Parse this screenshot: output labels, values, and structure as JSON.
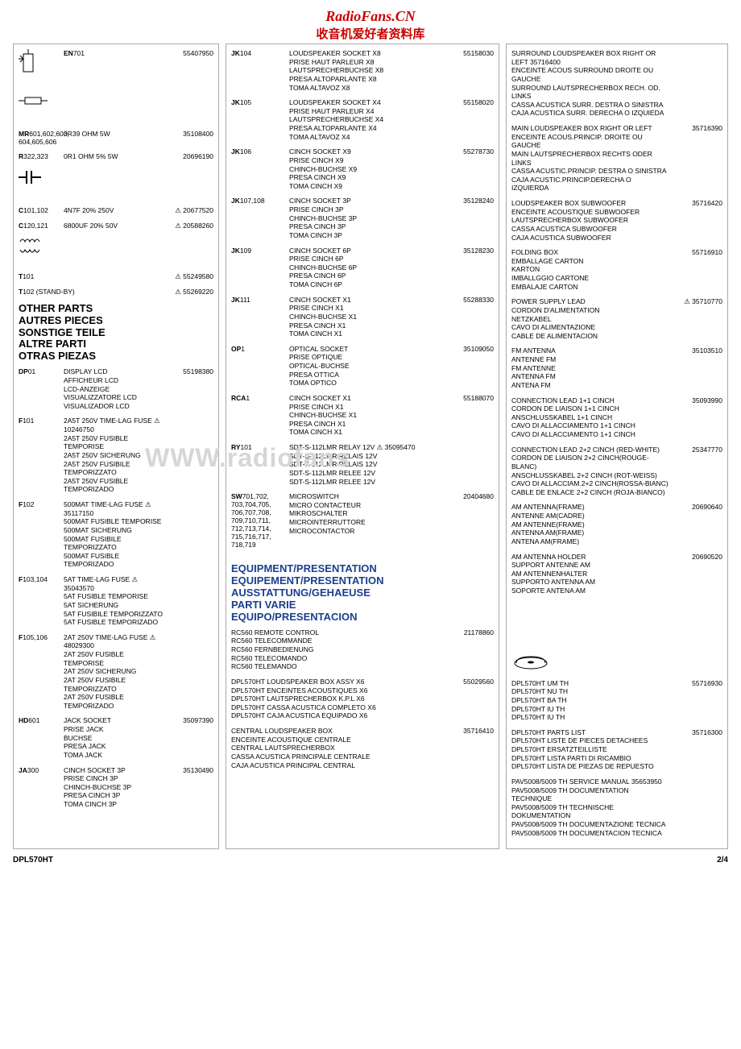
{
  "header": {
    "title_red": "RadioFans.CN",
    "title_cn": "收音机爱好者资料库"
  },
  "watermark": "WWW.radiofans",
  "footer": {
    "left": "DPL570HT",
    "right": "2/4"
  },
  "col1_symbols": [
    {
      "ref": "EN701",
      "mid": "",
      "code": "55407950"
    },
    {
      "ref": "",
      "mid": "",
      "code": ""
    },
    {
      "ref_html": "<b>MR</b>601,602,603, 604,605,606",
      "mid": "0R39 OHM 5W",
      "code": "35108400"
    },
    {
      "ref_html": "<b>R</b>322,323",
      "mid": "0R1 OHM 5% 5W",
      "code": "20696190"
    },
    {
      "ref": "",
      "mid": "",
      "code": ""
    },
    {
      "ref_html": "<b>C</b>101,102",
      "mid": "4N7F 20% 250V",
      "code": "⚠ 20677520"
    },
    {
      "ref_html": "<b>C</b>120,121",
      "mid": "6800UF 20% 50V",
      "code": "⚠ 20588260"
    },
    {
      "ref": "",
      "mid": "",
      "code": ""
    },
    {
      "ref_html": "<b>T</b>101",
      "mid": "",
      "code": "⚠ 55249580"
    },
    {
      "ref_html": "<b>T</b>102 (STAND-BY)",
      "mid": "",
      "code": "⚠ 55269220"
    }
  ],
  "col1_section_title": "OTHER PARTS\nAUTRES PIECES\nSONSTIGE TEILE\nALTRE PARTI\nOTRAS PIEZAS",
  "col1_parts": [
    {
      "ref": "DP01",
      "desc": "DISPLAY LCD\nAFFICHEUR LCD\nLCD-ANZEIGE\nVISUALIZZATORE LCD\nVISUALIZADOR LCD",
      "code": "55198380"
    },
    {
      "ref": "F101",
      "desc": "2A5T 250V TIME-LAG FUSE ⚠ 10246750\n2A5T 250V FUSIBLE TEMPORISE\n2A5T 250V SICHERUNG\n2A5T 250V FUSIBILE TEMPORIZZATO\n2A5T 250V FUSIBLE TEMPORIZADO",
      "code": ""
    },
    {
      "ref": "F102",
      "desc": "500MAT TIME-LAG FUSE        ⚠ 35117150\n500MAT FUSIBLE TEMPORISE\n500MAT SICHERUNG\n500MAT FUSIBILE TEMPORIZZATO\n500MAT FUSIBLE TEMPORIZADO",
      "code": ""
    },
    {
      "ref": "F103,104",
      "desc": "5AT TIME-LAG FUSE             ⚠ 35043570\n5AT FUSIBLE TEMPORISE\n5AT SICHERUNG\n5AT FUSIBILE TEMPORIZZATO\n5AT FUSIBLE TEMPORIZADO",
      "code": ""
    },
    {
      "ref": "F105,106",
      "desc": "2AT 250V TIME-LAG FUSE  ⚠ 48029300\n2AT 250V FUSIBLE TEMPORISE\n2AT 250V SICHERUNG\n2AT 250V FUSIBILE TEMPORIZZATO\n2AT 250V FUSIBLE TEMPORIZADO",
      "code": ""
    },
    {
      "ref": "HD601",
      "desc": "JACK SOCKET\nPRISE JACK\nBUCHSE\nPRESA JACK\nTOMA JACK",
      "code": "35097390"
    },
    {
      "ref": "JA300",
      "desc": "CINCH SOCKET 3P\nPRISE CINCH 3P\nCHINCH-BUCHSE 3P\nPRESA CINCH 3P\nTOMA CINCH 3P",
      "code": "35130490"
    }
  ],
  "col2_parts": [
    {
      "ref": "JK104",
      "desc": "LOUDSPEAKER SOCKET X8\nPRISE HAUT PARLEUR X8\nLAUTSPRECHERBUCHSE X8\nPRESA ALTOPARLANTE X8\nTOMA ALTAVOZ X8",
      "code": "55158030"
    },
    {
      "ref": "JK105",
      "desc": "LOUDSPEAKER SOCKET X4\nPRISE HAUT PARLEUR X4\nLAUTSPRECHERBUCHSE X4\nPRESA ALTOPARLANTE X4\nTOMA ALTAVOZ X4",
      "code": "55158020"
    },
    {
      "ref": "JK106",
      "desc": "CINCH SOCKET X9\nPRISE CINCH X9\nCHINCH-BUCHSE X9\nPRESA CINCH X9\nTOMA CINCH X9",
      "code": "55278730"
    },
    {
      "ref": "JK107,108",
      "desc": "CINCH SOCKET 3P\nPRISE CINCH 3P\nCHINCH-BUCHSE 3P\nPRESA CINCH 3P\nTOMA CINCH 3P",
      "code": "35128240"
    },
    {
      "ref": "JK109",
      "desc": "CINCH SOCKET 6P\nPRISE CINCH 6P\nCHINCH-BUCHSE 6P\nPRESA CINCH 6P\nTOMA CINCH 6P",
      "code": "35128230"
    },
    {
      "ref": "JK111",
      "desc": "CINCH SOCKET X1\nPRISE CINCH X1\nCHINCH-BUCHSE X1\nPRESA CINCH X1\nTOMA CINCH X1",
      "code": "55288330"
    },
    {
      "ref": "OP1",
      "desc": "OPTICAL SOCKET\nPRISE OPTIQUE\nOPTICAL-BUCHSE\nPRESA OTTICA\nTOMA OPTICO",
      "code": "35109050"
    },
    {
      "ref": "RCA1",
      "desc": "CINCH SOCKET X1\nPRISE CINCH X1\nCHINCH-BUCHSE X1\nPRESA CINCH X1\nTOMA CINCH X1",
      "code": "55188070"
    },
    {
      "ref": "RY101",
      "desc": "SDT-S-112LMR RELAY 12V     ⚠ 35095470\nSDT-S-112LMR RELAIS 12V\nSDT-S-112LMR RELAIS 12V\nSDT-S-112LMR RELEE 12V\nSDT-S-112LMR RELEE 12V",
      "code": ""
    },
    {
      "ref": "SW701,702, 703,704,705, 706,707,708, 709,710,711, 712,713,714, 715,716,717, 718,719",
      "desc": "MICROSWITCH\nMICRO CONTACTEUR\nMIKROSCHALTER\nMICROINTERRUTTORE\nMICROCONTACTOR",
      "code": "20404680"
    }
  ],
  "col2_section_title": "EQUIPMENT/PRESENTATION\nEQUIPEMENT/PRESENTATION\nAUSSTATTUNG/GEHAEUSE\nPARTI VARIE\nEQUIPO/PRESENTACION",
  "col2_equipment": [
    {
      "desc": "RC560 REMOTE CONTROL\nRC560 TELECOMMANDE\nRC560 FERNBEDIENUNG\nRC560 TELECOMANDO\nRC560 TELEMANDO",
      "code": "21178860"
    },
    {
      "desc": "DPL570HT LOUDSPEAKER BOX ASSY X6\nDPL570HT ENCEINTES ACOUSTIQUES X6\nDPL570HT LAUTSPRECHERBOX K.P.L X6\nDPL570HT CASSA ACUSTICA COMPLETO X6\nDPL570HT CAJA ACUSTICA EQUIPADO X6",
      "code": "55029560"
    },
    {
      "desc": "CENTRAL LOUDSPEAKER BOX\nENCEINTE ACOUSTIQUE CENTRALE\nCENTRAL LAUTSPRECHERBOX\nCASSA ACUSTICA PRINCIPALE CENTRALE\nCAJA ACUSTICA PRINCIPAL CENTRAL",
      "code": "35716410"
    }
  ],
  "col3_parts": [
    {
      "desc": "SURROUND LOUDSPEAKER BOX RIGHT OR LEFT 35716400\nENCEINTE ACOUS SURROUND DROITE OU GAUCHE\nSURROUND LAUTSPRECHERBOX RECH. OD. LINKS\nCASSA ACUSTICA SURR. DESTRA O SINISTRA\nCAJA ACUSTICA SURR. DERECHA O IZQUIEDA",
      "code": ""
    },
    {
      "desc": "MAIN LOUDSPEAKER BOX RIGHT OR LEFT\nENCEINTE ACOUS.PRINCIP. DROITE OU GAUCHE\nMAIN LAUTSPRECHERBOX RECHTS ODER LINKS\nCASSA ACUSTIC.PRINCIP. DESTRA O SINISTRA\nCAJA ACUSTIC.PRINCIP.DERECHA O IZQUIERDA",
      "code": "35716390"
    },
    {
      "desc": "LOUDSPEAKER BOX SUBWOOFER\nENCEINTE ACOUSTIQUE SUBWOOFER\nLAUTSPRECHERBOX SUBWOOFER\nCASSA ACUSTICA SUBWOOFER\nCAJA ACUSTICA SUBWOOFER",
      "code": "35716420"
    },
    {
      "desc": "FOLDING BOX\nEMBALLAGE CARTON\nKARTON\nIMBALLGGIO CARTONE\nEMBALAJE CARTON",
      "code": "55716910"
    },
    {
      "desc": "POWER SUPPLY LEAD\nCORDON D'ALIMENTATION\nNETZKABEL\nCAVO DI ALIMENTAZIONE\nCABLE DE ALIMENTACION",
      "code": "⚠ 35710770"
    },
    {
      "desc": "FM ANTENNA\nANTENNE FM\nFM ANTENNE\nANTENNA FM\nANTENA FM",
      "code": "35103510"
    },
    {
      "desc": "CONNECTION LEAD 1+1 CINCH\nCORDON DE LIAISON 1+1 CINCH\nANSCHLUSSKABEL 1+1 CINCH\nCAVO DI ALLACCIAMENTO 1+1 CINCH\nCAVO DI ALLACCIAMENTO 1+1 CINCH",
      "code": "35093990"
    },
    {
      "desc": "CONNECTION LEAD 2+2 CINCH (RED-WHITE)\nCORDON DE LIAISON 2+2 CINCH(ROUGE-BLANC)\nANSCHLUSSKABEL 2+2 CINCH (ROT-WEISS)\nCAVO DI ALLACCIAM.2+2 CINCH(ROSSA-BIANC)\nCABLE DE ENLACE 2+2 CINCH (ROJA-BIANCO)",
      "code": "25347770"
    },
    {
      "desc": "AM ANTENNA(FRAME)\nANTENNE AM(CADRE)\nAM ANTENNE(FRAME)\nANTENNA AM(FRAME)\nANTENA AM(FRAME)",
      "code": "20690640"
    },
    {
      "desc": "AM ANTENNA HOLDER\nSUPPORT ANTENNE AM\nAM ANTENNENHALTER\nSUPPORTO ANTENNA AM\nSOPORTE ANTENA AM",
      "code": "20690520"
    }
  ],
  "col3_bottom": [
    {
      "desc": "DPL570HT UM TH\nDPL570HT NU TH\nDPL570HT BA TH\nDPL570HT IU TH\nDPL570HT IU TH",
      "code": "55716930"
    },
    {
      "desc": "DPL570HT PARTS LIST\nDPL570HT LISTE DE PIECES DETACHEES\nDPL570HT ERSATZTEILLISTE\nDPL570HT LISTA PARTI DI RICAMBIO\nDPL570HT LISTA DE PIEZAS DE REPUESTO",
      "code": "35716300"
    },
    {
      "desc": "PAV5008/5009 TH SERVICE MANUAL            35653950\nPAV5008/5009 TH DOCUMENTATION TECHNIQUE\nPAV5008/5009 TH TECHNISCHE DOKUMENTATION\nPAV5008/5009 TH DOCUMENTAZIONE TECNICA\nPAV5008/5009 TH DOCUMENTACION TECNICA",
      "code": ""
    }
  ]
}
